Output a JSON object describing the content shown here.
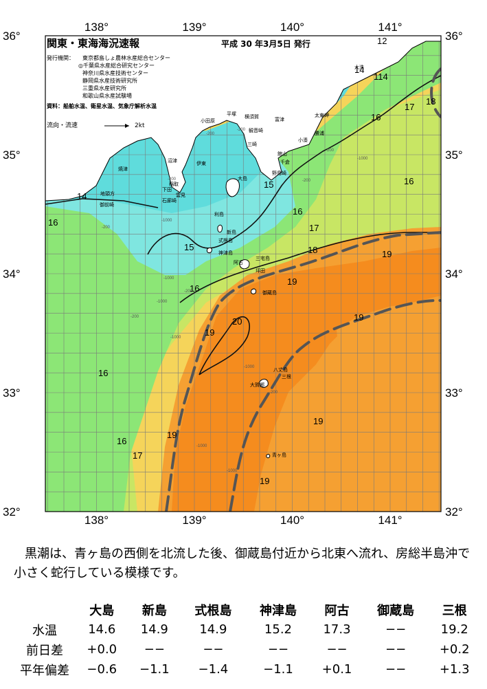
{
  "map": {
    "title": "関東・東海海況速報",
    "issue_date": "平成 30 年3月5日 発行",
    "agencies_label": "発行機関：",
    "agencies": [
      "東京都島しょ農林水産総合センター",
      "◎千葉県水産総合研究センター",
      "神奈川県水産技術センター",
      "静岡県水産技術研究所",
      "三重県水産研究所",
      "和歌山県水産試験場"
    ],
    "source_label": "資料：",
    "source": "船舶水温、衛星水温、気象庁解析水温",
    "current_label": "流向・流速",
    "current_scale": "2kt",
    "lon_labels": [
      "138°",
      "139°",
      "140°",
      "141°"
    ],
    "lat_labels": [
      "36°",
      "35°",
      "34°",
      "33°",
      "32°"
    ],
    "isotherm_labels": [
      "12",
      "14",
      "114",
      "18",
      "17",
      "16",
      "16",
      "15",
      "14",
      "16",
      "16",
      "17",
      "15",
      "18",
      "19",
      "16",
      "19",
      "20",
      "19",
      "19",
      "16",
      "19",
      "16",
      "17",
      "19",
      "19"
    ],
    "depth_labels": [
      "-200",
      "-200",
      "-1000",
      "-200",
      "-200",
      "-1000",
      "-200",
      "-1000",
      "-200",
      "-1000",
      "-200",
      "-1000",
      "-1000",
      "-1000",
      "-200",
      "-200",
      "-1000"
    ],
    "places": [
      "大洗",
      "太東岬",
      "勝浦",
      "小湊",
      "館山",
      "野島崎",
      "千倉",
      "富津",
      "観音崎",
      "三崎",
      "横須賀",
      "平塚",
      "小田原",
      "伊東",
      "焼津",
      "沼津",
      "御前崎",
      "地頭方",
      "稲取",
      "下田",
      "石廊崎",
      "雲見",
      "大島",
      "利島",
      "新島",
      "式根島",
      "神津島",
      "三宅島",
      "阿古",
      "坪田",
      "御蔵島",
      "八丈島",
      "大賀郷",
      "三根",
      "青ヶ島"
    ],
    "colors": {
      "t12": "#5fd2c8",
      "t14": "#5fdcdc",
      "t15": "#7fe6e0",
      "t16": "#8ce676",
      "t17": "#c8e664",
      "t18": "#f5d45a",
      "t19": "#f5a032",
      "t20": "#f58c1e",
      "land": "#ffffff",
      "kuroshio": "#555555"
    }
  },
  "comment": "黒潮は、青ヶ島の西側を北流した後、御蔵島付近から北東へ流れ、房総半島沖で小さく蛇行している模様です。",
  "table": {
    "headers": [
      "",
      "大島",
      "新島",
      "式根島",
      "神津島",
      "阿古",
      "御蔵島",
      "三根"
    ],
    "rows": [
      {
        "label": "水温",
        "values": [
          "14.6",
          "14.9",
          "14.9",
          "15.2",
          "17.3",
          "−−",
          "19.2"
        ]
      },
      {
        "label": "前日差",
        "values": [
          "+0.0",
          "−−",
          "−−",
          "−−",
          "−−",
          "−−",
          "+0.2"
        ]
      },
      {
        "label": "平年偏差",
        "values": [
          "−0.6",
          "−1.1",
          "−1.4",
          "−1.1",
          "+0.1",
          "−−",
          "+1.3"
        ]
      }
    ]
  }
}
